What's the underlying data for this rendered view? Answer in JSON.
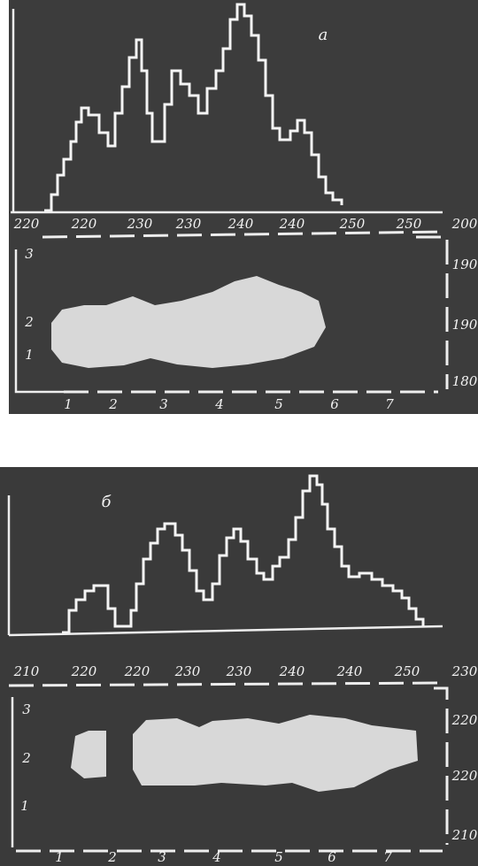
{
  "panels": [
    {
      "label": "а",
      "scale_labels": [
        "220",
        "220",
        "230",
        "230",
        "240",
        "240",
        "250",
        "250",
        "200"
      ],
      "left_labels": [
        "3",
        "2",
        "1"
      ],
      "right_labels": [
        "190",
        "190",
        "180"
      ],
      "bottom_labels": [
        "1",
        "2",
        "3",
        "4",
        "5",
        "6",
        "7"
      ]
    },
    {
      "label": "б",
      "scale_labels": [
        "210",
        "220",
        "220",
        "230",
        "230",
        "240",
        "240",
        "250",
        "230"
      ],
      "left_labels": [
        "3",
        "2",
        "1"
      ],
      "right_labels": [
        "220",
        "220",
        "210"
      ],
      "bottom_labels": [
        "1",
        "2",
        "3",
        "4",
        "5",
        "6",
        "7"
      ]
    }
  ]
}
